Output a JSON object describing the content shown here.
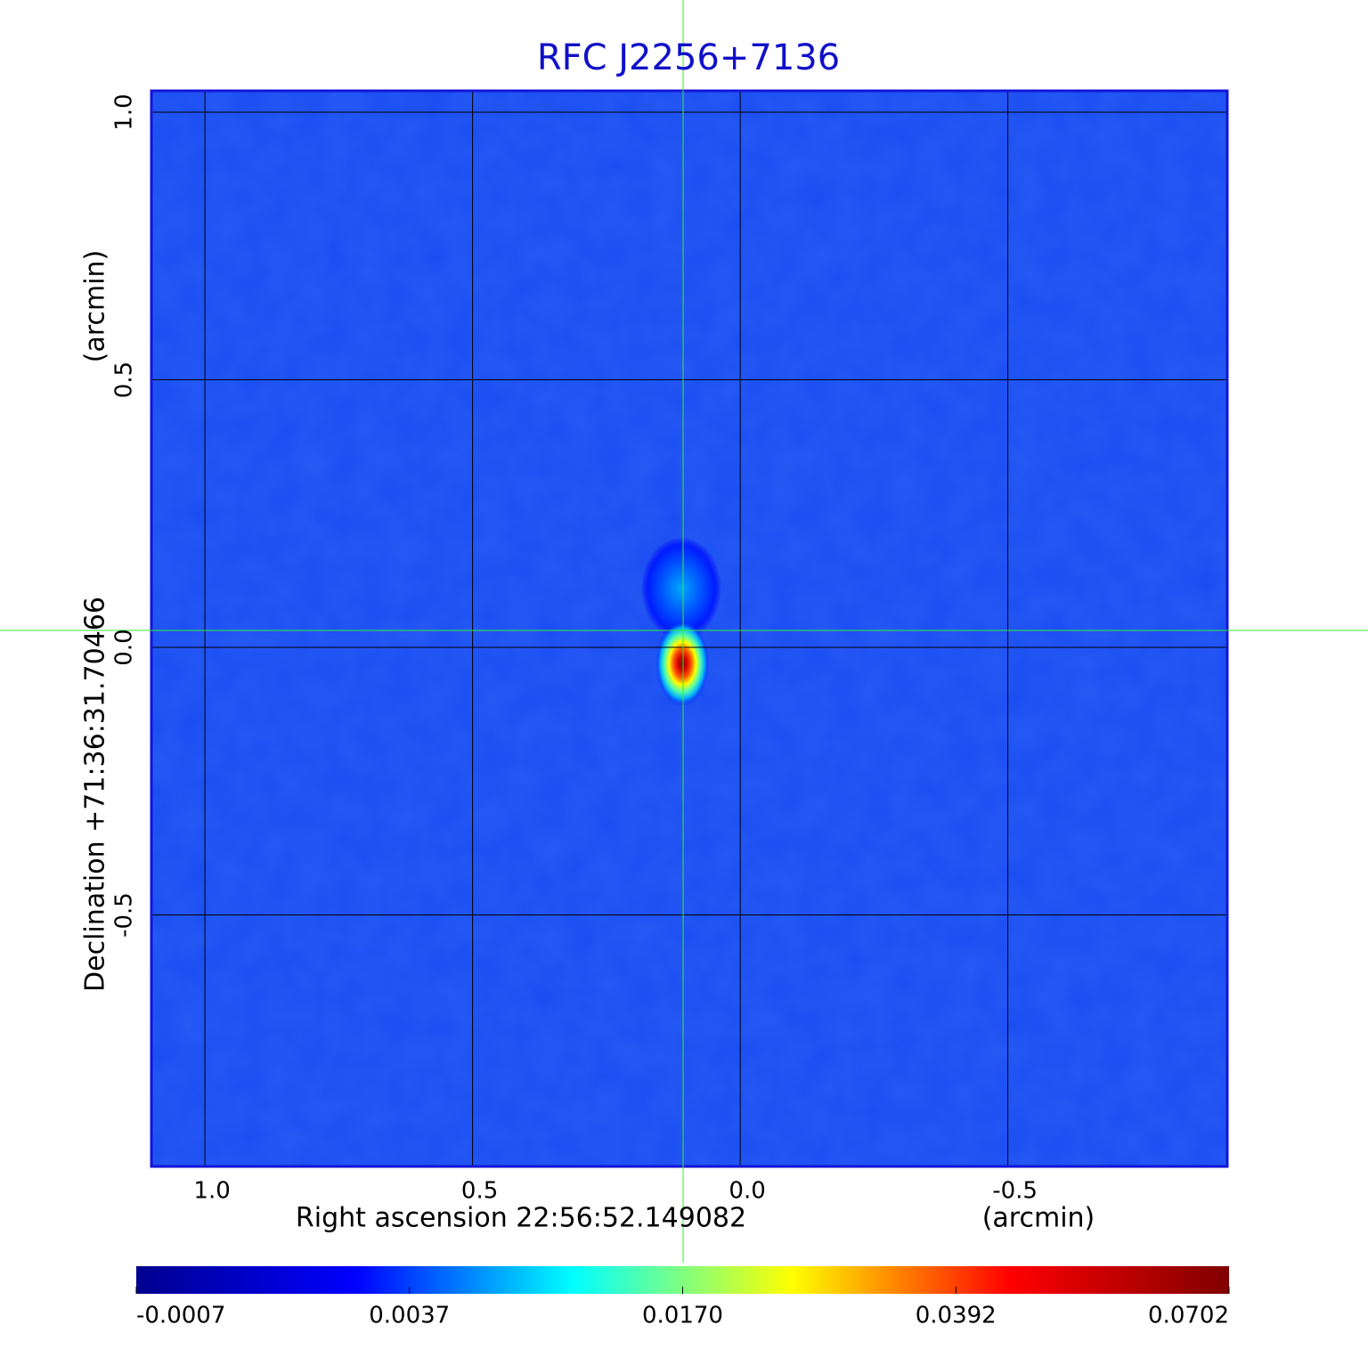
{
  "chart_data": {
    "type": "image",
    "title": "RFC J2256+7136",
    "x_label": "Right ascension  22:56:52.149082",
    "x_unit": "(arcmin)",
    "y_label": "Declination  +71:36:31.70466",
    "y_unit": "(arcmin)",
    "xlim": [
      1.1,
      -0.91
    ],
    "ylim": [
      -0.97,
      1.04
    ],
    "xticks": [
      {
        "value": 1,
        "label": "1.0"
      },
      0.5,
      {
        "value": 0,
        "label": "0.0"
      },
      -0.5
    ],
    "yticks": [
      {
        "value": 1,
        "label": "1.0"
      },
      0.5,
      {
        "value": 0,
        "label": "0.0"
      },
      -0.5
    ],
    "grid": true,
    "colormap": [
      "#00008f",
      "#0000ff",
      "#00ffff",
      "#ffff00",
      "#ff0000",
      "#800000"
    ],
    "cticks": [
      -0.0007,
      0.0037,
      {
        "value": 0.017,
        "label": "0.0170"
      },
      0.0392,
      0.0702
    ],
    "components": [
      {
        "x": 0.11,
        "y": 0.11,
        "value": 0.008
      },
      {
        "x": 0.108,
        "y": -0.03,
        "value": 0.0702
      }
    ]
  }
}
